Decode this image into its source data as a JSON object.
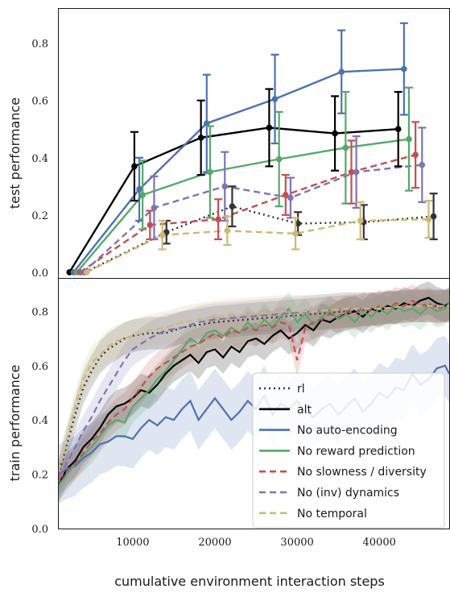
{
  "chart_data": [
    {
      "type": "line",
      "ylabel": "test performance",
      "xlim": [
        1000,
        48500
      ],
      "ylim": [
        -0.02,
        0.92
      ],
      "yticks": [
        0.0,
        0.2,
        0.4,
        0.6,
        0.8
      ],
      "ytick_labels": [
        "0.0",
        "0.2",
        "0.4",
        "0.6",
        "0.8"
      ],
      "error_bars": true,
      "series": [
        {
          "name": "rl",
          "color": "#333333",
          "style": "dotted",
          "x": [
            4200,
            14100,
            22100,
            30100,
            38100,
            46600
          ],
          "y": [
            0.0,
            0.14,
            0.23,
            0.17,
            0.175,
            0.195
          ],
          "err": [
            0.0,
            0.04,
            0.07,
            0.04,
            0.06,
            0.08
          ]
        },
        {
          "name": "alt",
          "color": "#000000",
          "style": "solid",
          "x": [
            2300,
            10200,
            18300,
            26600,
            34600,
            42300
          ],
          "y": [
            0.0,
            0.37,
            0.47,
            0.505,
            0.485,
            0.5
          ],
          "err": [
            0.0,
            0.12,
            0.13,
            0.135,
            0.13,
            0.13
          ]
        },
        {
          "name": "No auto-encoding",
          "color": "#4c72b0",
          "style": "solid",
          "x": [
            2800,
            10800,
            19000,
            27300,
            35400,
            43000
          ],
          "y": [
            0.0,
            0.29,
            0.52,
            0.605,
            0.7,
            0.71
          ],
          "err": [
            0.0,
            0.11,
            0.17,
            0.155,
            0.145,
            0.16
          ]
        },
        {
          "name": "No reward prediction",
          "color": "#55a868",
          "style": "solid",
          "x": [
            3200,
            11200,
            19400,
            27800,
            35900,
            43600
          ],
          "y": [
            0.0,
            0.27,
            0.35,
            0.395,
            0.435,
            0.465
          ],
          "err": [
            0.0,
            0.12,
            0.16,
            0.165,
            0.195,
            0.18
          ]
        },
        {
          "name": "No slowness / diversity",
          "color": "#c44e52",
          "style": "dashed",
          "x": [
            3600,
            12100,
            20400,
            28600,
            36600,
            44400
          ],
          "y": [
            0.0,
            0.165,
            0.185,
            0.27,
            0.35,
            0.41
          ],
          "err": [
            0.0,
            0.05,
            0.07,
            0.07,
            0.11,
            0.115
          ]
        },
        {
          "name": "No (inv) dynamics",
          "color": "#8172b2",
          "style": "dashed",
          "x": [
            4000,
            12600,
            21200,
            29200,
            37200,
            45200
          ],
          "y": [
            0.0,
            0.225,
            0.3,
            0.26,
            0.35,
            0.375
          ],
          "err": [
            0.0,
            0.11,
            0.12,
            0.07,
            0.125,
            0.13
          ]
        },
        {
          "name": "No temporal",
          "color": "#ccb974",
          "style": "dashed",
          "x": [
            4400,
            13600,
            21500,
            29800,
            37700,
            46000
          ],
          "y": [
            0.0,
            0.13,
            0.145,
            0.135,
            0.18,
            0.185
          ],
          "err": [
            0.0,
            0.05,
            0.05,
            0.055,
            0.065,
            0.065
          ]
        }
      ]
    },
    {
      "type": "line",
      "ylabel": "train performance",
      "xlabel": "cumulative environment interaction steps",
      "xlim": [
        1000,
        48500
      ],
      "ylim": [
        0.0,
        0.92
      ],
      "xticks": [
        10000,
        20000,
        30000,
        40000
      ],
      "xtick_labels": [
        "10000",
        "20000",
        "30000",
        "40000"
      ],
      "yticks": [
        0.0,
        0.2,
        0.4,
        0.6,
        0.8
      ],
      "ytick_labels": [
        "0.0",
        "0.2",
        "0.4",
        "0.6",
        "0.8"
      ],
      "legend_position": "lower-right",
      "shaded_bands": true,
      "series": [
        {
          "name": "rl",
          "color": "#333333",
          "style": "dotted",
          "x": [
            1000,
            2000,
            3000,
            4000,
            5000,
            6000,
            7000,
            8000,
            9000,
            10000,
            12000,
            14000,
            16000,
            18000,
            20000,
            24000,
            28000,
            32000,
            36000,
            40000,
            44000,
            48500
          ],
          "y": [
            0.2,
            0.31,
            0.42,
            0.52,
            0.58,
            0.63,
            0.66,
            0.68,
            0.7,
            0.71,
            0.72,
            0.72,
            0.74,
            0.75,
            0.76,
            0.77,
            0.78,
            0.79,
            0.8,
            0.81,
            0.82,
            0.82
          ]
        },
        {
          "name": "alt",
          "color": "#000000",
          "style": "solid",
          "x": [
            1000,
            2000,
            3000,
            4000,
            5000,
            6000,
            7000,
            8000,
            9000,
            10000,
            11000,
            12000,
            13000,
            14000,
            15000,
            16000,
            17000,
            18000,
            19000,
            20000,
            21000,
            22000,
            23000,
            24000,
            25000,
            26000,
            27000,
            28000,
            29000,
            30000,
            31000,
            32000,
            33000,
            34000,
            35000,
            36000,
            37000,
            38000,
            39000,
            40000,
            41000,
            42000,
            43000,
            44000,
            45000,
            46000,
            47000,
            48000,
            48500
          ],
          "y": [
            0.16,
            0.22,
            0.25,
            0.3,
            0.33,
            0.37,
            0.42,
            0.45,
            0.46,
            0.48,
            0.51,
            0.5,
            0.53,
            0.57,
            0.6,
            0.62,
            0.64,
            0.61,
            0.65,
            0.66,
            0.63,
            0.67,
            0.65,
            0.69,
            0.7,
            0.68,
            0.71,
            0.73,
            0.7,
            0.72,
            0.75,
            0.73,
            0.77,
            0.76,
            0.78,
            0.79,
            0.8,
            0.78,
            0.81,
            0.8,
            0.82,
            0.81,
            0.83,
            0.82,
            0.84,
            0.85,
            0.83,
            0.82,
            0.83
          ]
        },
        {
          "name": "No auto-encoding",
          "color": "#4c72b0",
          "style": "solid",
          "x": [
            1000,
            2000,
            3000,
            4000,
            5000,
            6000,
            7000,
            8000,
            9000,
            10000,
            11000,
            12000,
            13000,
            14000,
            15000,
            16000,
            17000,
            18000,
            19000,
            20000,
            21000,
            22000,
            23000,
            24000,
            25000,
            26000,
            27000,
            28000,
            29000,
            30000,
            31000,
            32000,
            33000,
            34000,
            35000,
            36000,
            37000,
            38000,
            39000,
            40000,
            41000,
            42000,
            43000,
            44000,
            45000,
            46000,
            47000,
            48000,
            48500
          ],
          "y": [
            0.2,
            0.22,
            0.23,
            0.26,
            0.28,
            0.31,
            0.32,
            0.34,
            0.34,
            0.33,
            0.37,
            0.4,
            0.38,
            0.41,
            0.4,
            0.44,
            0.47,
            0.4,
            0.44,
            0.48,
            0.44,
            0.4,
            0.43,
            0.47,
            0.44,
            0.49,
            0.42,
            0.46,
            0.44,
            0.47,
            0.43,
            0.41,
            0.44,
            0.46,
            0.42,
            0.45,
            0.48,
            0.43,
            0.46,
            0.5,
            0.48,
            0.52,
            0.51,
            0.57,
            0.53,
            0.55,
            0.59,
            0.6,
            0.57
          ]
        },
        {
          "name": "No reward prediction",
          "color": "#55a868",
          "style": "solid",
          "x": [
            1000,
            2000,
            3000,
            4000,
            5000,
            6000,
            7000,
            8000,
            9000,
            10000,
            11000,
            12000,
            13000,
            14000,
            15000,
            16000,
            17000,
            18000,
            19000,
            20000,
            21000,
            22000,
            23000,
            24000,
            25000,
            26000,
            27000,
            28000,
            29000,
            30000,
            31000,
            32000,
            33000,
            34000,
            35000,
            36000,
            37000,
            38000,
            39000,
            40000,
            41000,
            42000,
            43000,
            44000,
            45000,
            46000,
            47000,
            48000,
            48500
          ],
          "y": [
            0.16,
            0.2,
            0.24,
            0.27,
            0.3,
            0.34,
            0.38,
            0.4,
            0.39,
            0.45,
            0.48,
            0.51,
            0.55,
            0.58,
            0.62,
            0.66,
            0.7,
            0.68,
            0.72,
            0.73,
            0.71,
            0.74,
            0.72,
            0.76,
            0.73,
            0.77,
            0.74,
            0.78,
            0.81,
            0.76,
            0.79,
            0.75,
            0.78,
            0.8,
            0.77,
            0.79,
            0.76,
            0.8,
            0.78,
            0.81,
            0.79,
            0.82,
            0.8,
            0.81,
            0.79,
            0.82,
            0.8,
            0.81,
            0.83
          ]
        },
        {
          "name": "No slowness / diversity",
          "color": "#c44e52",
          "style": "dashed",
          "x": [
            1000,
            2000,
            3000,
            4000,
            5000,
            6000,
            7000,
            8000,
            9000,
            10000,
            11000,
            12000,
            13000,
            14000,
            15000,
            16000,
            17000,
            18000,
            19000,
            20000,
            21000,
            22000,
            23000,
            24000,
            25000,
            26000,
            27000,
            28000,
            29000,
            30000,
            31000,
            32000,
            33000,
            34000,
            35000,
            36000,
            37000,
            38000,
            39000,
            40000,
            41000,
            42000,
            43000,
            44000,
            45000,
            46000,
            47000,
            48000,
            48500
          ],
          "y": [
            0.18,
            0.21,
            0.24,
            0.28,
            0.32,
            0.35,
            0.39,
            0.42,
            0.44,
            0.48,
            0.52,
            0.56,
            0.59,
            0.61,
            0.63,
            0.65,
            0.67,
            0.68,
            0.7,
            0.72,
            0.7,
            0.73,
            0.72,
            0.74,
            0.73,
            0.75,
            0.74,
            0.76,
            0.75,
            0.62,
            0.74,
            0.76,
            0.77,
            0.79,
            0.78,
            0.8,
            0.79,
            0.81,
            0.8,
            0.82,
            0.81,
            0.83,
            0.82,
            0.84,
            0.82,
            0.83,
            0.81,
            0.82,
            0.82
          ]
        },
        {
          "name": "No (inv) dynamics",
          "color": "#8172b2",
          "style": "dashed",
          "x": [
            1000,
            2000,
            3000,
            4000,
            5000,
            6000,
            7000,
            8000,
            9000,
            10000,
            12000,
            14000,
            16000,
            18000,
            20000,
            24000,
            28000,
            32000,
            36000,
            40000,
            44000,
            48500
          ],
          "y": [
            0.19,
            0.24,
            0.3,
            0.36,
            0.41,
            0.47,
            0.52,
            0.57,
            0.62,
            0.66,
            0.7,
            0.73,
            0.74,
            0.76,
            0.77,
            0.78,
            0.79,
            0.8,
            0.81,
            0.81,
            0.82,
            0.82
          ]
        },
        {
          "name": "No temporal",
          "color": "#ccb974",
          "style": "dashed",
          "x": [
            1000,
            2000,
            3000,
            4000,
            5000,
            6000,
            7000,
            8000,
            9000,
            10000,
            12000,
            14000,
            16000,
            18000,
            20000,
            24000,
            28000,
            32000,
            36000,
            40000,
            44000,
            48500
          ],
          "y": [
            0.21,
            0.33,
            0.45,
            0.55,
            0.61,
            0.64,
            0.67,
            0.69,
            0.7,
            0.71,
            0.73,
            0.74,
            0.76,
            0.77,
            0.78,
            0.79,
            0.8,
            0.8,
            0.81,
            0.81,
            0.82,
            0.82
          ]
        }
      ]
    }
  ]
}
